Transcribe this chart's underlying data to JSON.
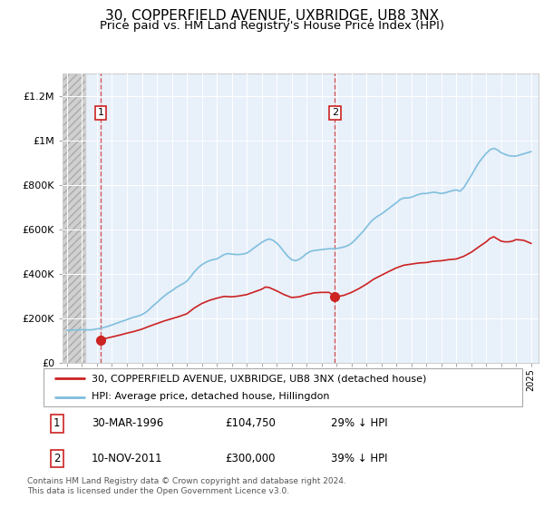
{
  "title": "30, COPPERFIELD AVENUE, UXBRIDGE, UB8 3NX",
  "subtitle": "Price paid vs. HM Land Registry's House Price Index (HPI)",
  "title_fontsize": 11,
  "subtitle_fontsize": 9.5,
  "ylim": [
    0,
    1300000
  ],
  "yticks": [
    0,
    200000,
    400000,
    600000,
    800000,
    1000000,
    1200000
  ],
  "ytick_labels": [
    "£0",
    "£200K",
    "£400K",
    "£600K",
    "£800K",
    "£1M",
    "£1.2M"
  ],
  "xlim_start": 1993.7,
  "xlim_end": 2025.5,
  "hatch_end": 1995.2,
  "sale1_x": 1996.24,
  "sale1_y": 104750,
  "sale1_label": "1",
  "sale2_x": 2011.9,
  "sale2_y": 300000,
  "sale2_label": "2",
  "hpi_color": "#7fbfdd",
  "price_color": "#cc2222",
  "plot_bg": "#e8f0fa",
  "legend_label_price": "30, COPPERFIELD AVENUE, UXBRIDGE, UB8 3NX (detached house)",
  "legend_label_hpi": "HPI: Average price, detached house, Hillingdon",
  "table_rows": [
    {
      "num": "1",
      "date": "30-MAR-1996",
      "price": "£104,750",
      "vs_hpi": "29% ↓ HPI"
    },
    {
      "num": "2",
      "date": "10-NOV-2011",
      "price": "£300,000",
      "vs_hpi": "39% ↓ HPI"
    }
  ],
  "footer": "Contains HM Land Registry data © Crown copyright and database right 2024.\nThis data is licensed under the Open Government Licence v3.0.",
  "hpi_data": [
    [
      1994.0,
      148000
    ],
    [
      1994.25,
      148500
    ],
    [
      1994.5,
      149000
    ],
    [
      1994.75,
      150000
    ],
    [
      1995.0,
      150500
    ],
    [
      1995.25,
      150000
    ],
    [
      1995.5,
      149500
    ],
    [
      1995.75,
      151000
    ],
    [
      1996.0,
      154000
    ],
    [
      1996.25,
      157000
    ],
    [
      1996.5,
      161000
    ],
    [
      1996.75,
      166000
    ],
    [
      1997.0,
      172000
    ],
    [
      1997.25,
      178000
    ],
    [
      1997.5,
      184000
    ],
    [
      1997.75,
      190000
    ],
    [
      1998.0,
      196000
    ],
    [
      1998.25,
      202000
    ],
    [
      1998.5,
      207000
    ],
    [
      1998.75,
      212000
    ],
    [
      1999.0,
      218000
    ],
    [
      1999.25,
      228000
    ],
    [
      1999.5,
      242000
    ],
    [
      1999.75,
      258000
    ],
    [
      2000.0,
      272000
    ],
    [
      2000.25,
      288000
    ],
    [
      2000.5,
      302000
    ],
    [
      2000.75,
      315000
    ],
    [
      2001.0,
      325000
    ],
    [
      2001.25,
      338000
    ],
    [
      2001.5,
      348000
    ],
    [
      2001.75,
      357000
    ],
    [
      2002.0,
      368000
    ],
    [
      2002.25,
      388000
    ],
    [
      2002.5,
      410000
    ],
    [
      2002.75,
      428000
    ],
    [
      2003.0,
      442000
    ],
    [
      2003.25,
      452000
    ],
    [
      2003.5,
      460000
    ],
    [
      2003.75,
      465000
    ],
    [
      2004.0,
      468000
    ],
    [
      2004.25,
      478000
    ],
    [
      2004.5,
      488000
    ],
    [
      2004.75,
      492000
    ],
    [
      2005.0,
      490000
    ],
    [
      2005.25,
      488000
    ],
    [
      2005.5,
      488000
    ],
    [
      2005.75,
      490000
    ],
    [
      2006.0,
      494000
    ],
    [
      2006.25,
      505000
    ],
    [
      2006.5,
      518000
    ],
    [
      2006.75,
      530000
    ],
    [
      2007.0,
      542000
    ],
    [
      2007.25,
      552000
    ],
    [
      2007.5,
      558000
    ],
    [
      2007.75,
      552000
    ],
    [
      2008.0,
      540000
    ],
    [
      2008.25,
      522000
    ],
    [
      2008.5,
      500000
    ],
    [
      2008.75,
      480000
    ],
    [
      2009.0,
      465000
    ],
    [
      2009.25,
      460000
    ],
    [
      2009.5,
      466000
    ],
    [
      2009.75,
      478000
    ],
    [
      2010.0,
      492000
    ],
    [
      2010.25,
      502000
    ],
    [
      2010.5,
      506000
    ],
    [
      2010.75,
      508000
    ],
    [
      2011.0,
      510000
    ],
    [
      2011.25,
      512000
    ],
    [
      2011.5,
      514000
    ],
    [
      2011.75,
      514000
    ],
    [
      2012.0,
      515000
    ],
    [
      2012.25,
      518000
    ],
    [
      2012.5,
      522000
    ],
    [
      2012.75,
      528000
    ],
    [
      2013.0,
      538000
    ],
    [
      2013.25,
      554000
    ],
    [
      2013.5,
      572000
    ],
    [
      2013.75,
      590000
    ],
    [
      2014.0,
      610000
    ],
    [
      2014.25,
      632000
    ],
    [
      2014.5,
      648000
    ],
    [
      2014.75,
      660000
    ],
    [
      2015.0,
      670000
    ],
    [
      2015.25,
      682000
    ],
    [
      2015.5,
      695000
    ],
    [
      2015.75,
      708000
    ],
    [
      2016.0,
      720000
    ],
    [
      2016.25,
      735000
    ],
    [
      2016.5,
      742000
    ],
    [
      2016.75,
      742000
    ],
    [
      2017.0,
      745000
    ],
    [
      2017.25,
      752000
    ],
    [
      2017.5,
      758000
    ],
    [
      2017.75,
      762000
    ],
    [
      2018.0,
      762000
    ],
    [
      2018.25,
      765000
    ],
    [
      2018.5,
      768000
    ],
    [
      2018.75,
      765000
    ],
    [
      2019.0,
      762000
    ],
    [
      2019.25,
      765000
    ],
    [
      2019.5,
      770000
    ],
    [
      2019.75,
      775000
    ],
    [
      2020.0,
      778000
    ],
    [
      2020.25,
      772000
    ],
    [
      2020.5,
      788000
    ],
    [
      2020.75,
      815000
    ],
    [
      2021.0,
      842000
    ],
    [
      2021.25,
      872000
    ],
    [
      2021.5,
      900000
    ],
    [
      2021.75,
      922000
    ],
    [
      2022.0,
      942000
    ],
    [
      2022.25,
      958000
    ],
    [
      2022.5,
      965000
    ],
    [
      2022.75,
      958000
    ],
    [
      2023.0,
      945000
    ],
    [
      2023.25,
      938000
    ],
    [
      2023.5,
      932000
    ],
    [
      2023.75,
      930000
    ],
    [
      2024.0,
      930000
    ],
    [
      2024.25,
      935000
    ],
    [
      2024.5,
      940000
    ],
    [
      2024.75,
      945000
    ],
    [
      2025.0,
      950000
    ]
  ],
  "price_data": [
    [
      1996.24,
      104750
    ],
    [
      1996.5,
      110000
    ],
    [
      1997.0,
      118000
    ],
    [
      1997.5,
      126000
    ],
    [
      1998.0,
      135000
    ],
    [
      1998.5,
      143000
    ],
    [
      1999.0,
      153000
    ],
    [
      1999.5,
      166000
    ],
    [
      2000.0,
      178000
    ],
    [
      2000.5,
      190000
    ],
    [
      2001.0,
      200000
    ],
    [
      2001.5,
      210000
    ],
    [
      2002.0,
      222000
    ],
    [
      2002.5,
      248000
    ],
    [
      2003.0,
      268000
    ],
    [
      2003.5,
      282000
    ],
    [
      2004.0,
      292000
    ],
    [
      2004.5,
      300000
    ],
    [
      2005.0,
      298000
    ],
    [
      2005.5,
      302000
    ],
    [
      2006.0,
      308000
    ],
    [
      2006.5,
      320000
    ],
    [
      2007.0,
      332000
    ],
    [
      2007.25,
      342000
    ],
    [
      2007.5,
      340000
    ],
    [
      2008.0,
      325000
    ],
    [
      2008.5,
      308000
    ],
    [
      2009.0,
      295000
    ],
    [
      2009.5,
      298000
    ],
    [
      2010.0,
      308000
    ],
    [
      2010.5,
      316000
    ],
    [
      2011.0,
      318000
    ],
    [
      2011.5,
      318000
    ],
    [
      2011.9,
      300000
    ],
    [
      2012.0,
      298000
    ],
    [
      2012.5,
      305000
    ],
    [
      2013.0,
      318000
    ],
    [
      2013.5,
      335000
    ],
    [
      2014.0,
      355000
    ],
    [
      2014.5,
      378000
    ],
    [
      2015.0,
      395000
    ],
    [
      2015.5,
      412000
    ],
    [
      2016.0,
      428000
    ],
    [
      2016.5,
      440000
    ],
    [
      2017.0,
      445000
    ],
    [
      2017.5,
      450000
    ],
    [
      2018.0,
      452000
    ],
    [
      2018.5,
      458000
    ],
    [
      2019.0,
      460000
    ],
    [
      2019.5,
      465000
    ],
    [
      2020.0,
      468000
    ],
    [
      2020.5,
      480000
    ],
    [
      2021.0,
      498000
    ],
    [
      2021.5,
      522000
    ],
    [
      2022.0,
      545000
    ],
    [
      2022.25,
      560000
    ],
    [
      2022.5,
      568000
    ],
    [
      2022.75,
      558000
    ],
    [
      2023.0,
      548000
    ],
    [
      2023.25,
      545000
    ],
    [
      2023.5,
      545000
    ],
    [
      2023.75,
      548000
    ],
    [
      2024.0,
      555000
    ],
    [
      2024.5,
      552000
    ],
    [
      2025.0,
      538000
    ]
  ]
}
